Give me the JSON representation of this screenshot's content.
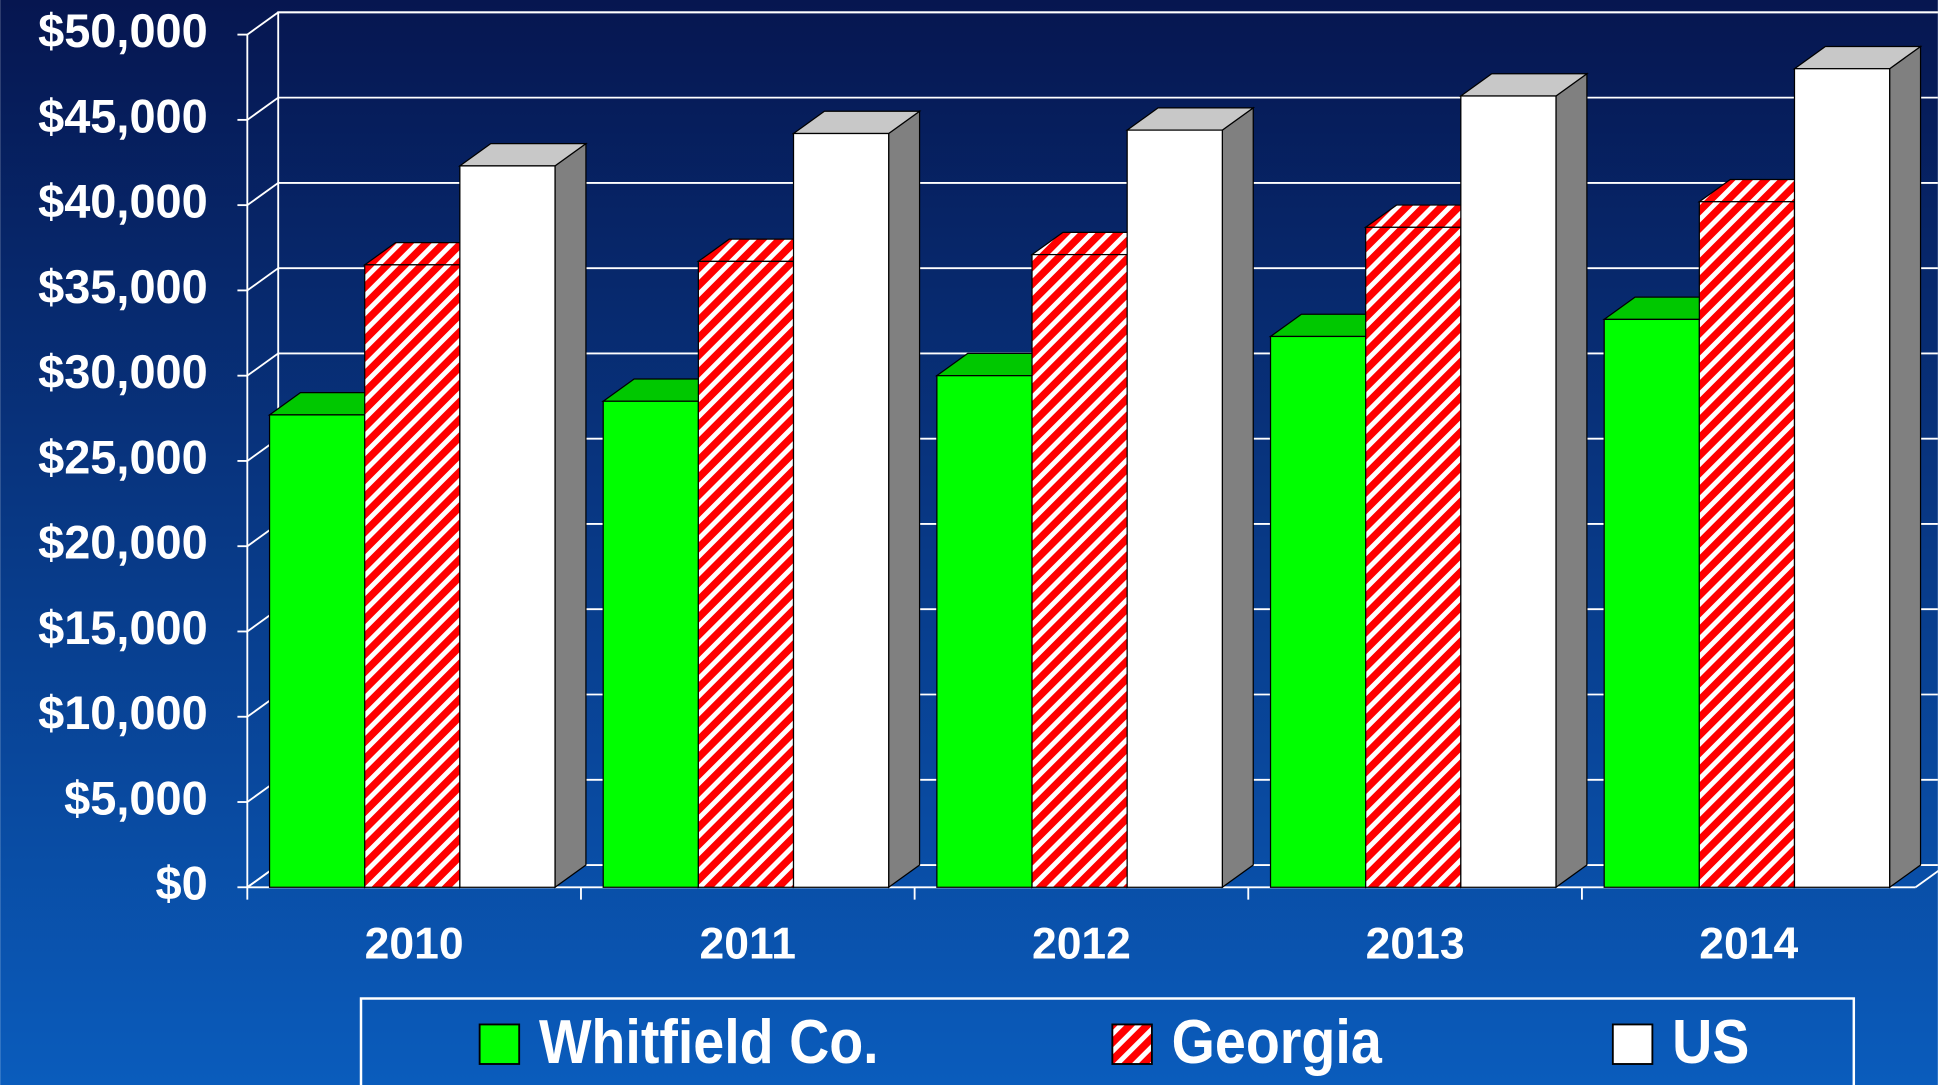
{
  "chart_data": {
    "type": "bar3d",
    "categories": [
      "2010",
      "2011",
      "2012",
      "2013",
      "2014"
    ],
    "series": [
      {
        "name": "Whitfield Co.",
        "color": "#00ff00",
        "values": [
          27700,
          28500,
          30000,
          32300,
          33300
        ]
      },
      {
        "name": "Georgia",
        "color": "#ff0000",
        "values": [
          36500,
          36700,
          37100,
          38700,
          40200
        ]
      },
      {
        "name": "US",
        "color": "#ffffff",
        "values": [
          42300,
          44200,
          44400,
          46400,
          48000
        ]
      }
    ],
    "ylim": [
      0,
      50000
    ],
    "yticks": [
      {
        "value": 0,
        "label": "$0"
      },
      {
        "value": 5000,
        "label": "$5,000"
      },
      {
        "value": 10000,
        "label": "$10,000"
      },
      {
        "value": 15000,
        "label": "$15,000"
      },
      {
        "value": 20000,
        "label": "$20,000"
      },
      {
        "value": 25000,
        "label": "$25,000"
      },
      {
        "value": 30000,
        "label": "$30,000"
      },
      {
        "value": 35000,
        "label": "$35,000"
      },
      {
        "value": 40000,
        "label": "$40,000"
      },
      {
        "value": 45000,
        "label": "$45,000"
      },
      {
        "value": 50000,
        "label": "$50,000"
      }
    ],
    "grid": true,
    "legend": "bottom"
  }
}
